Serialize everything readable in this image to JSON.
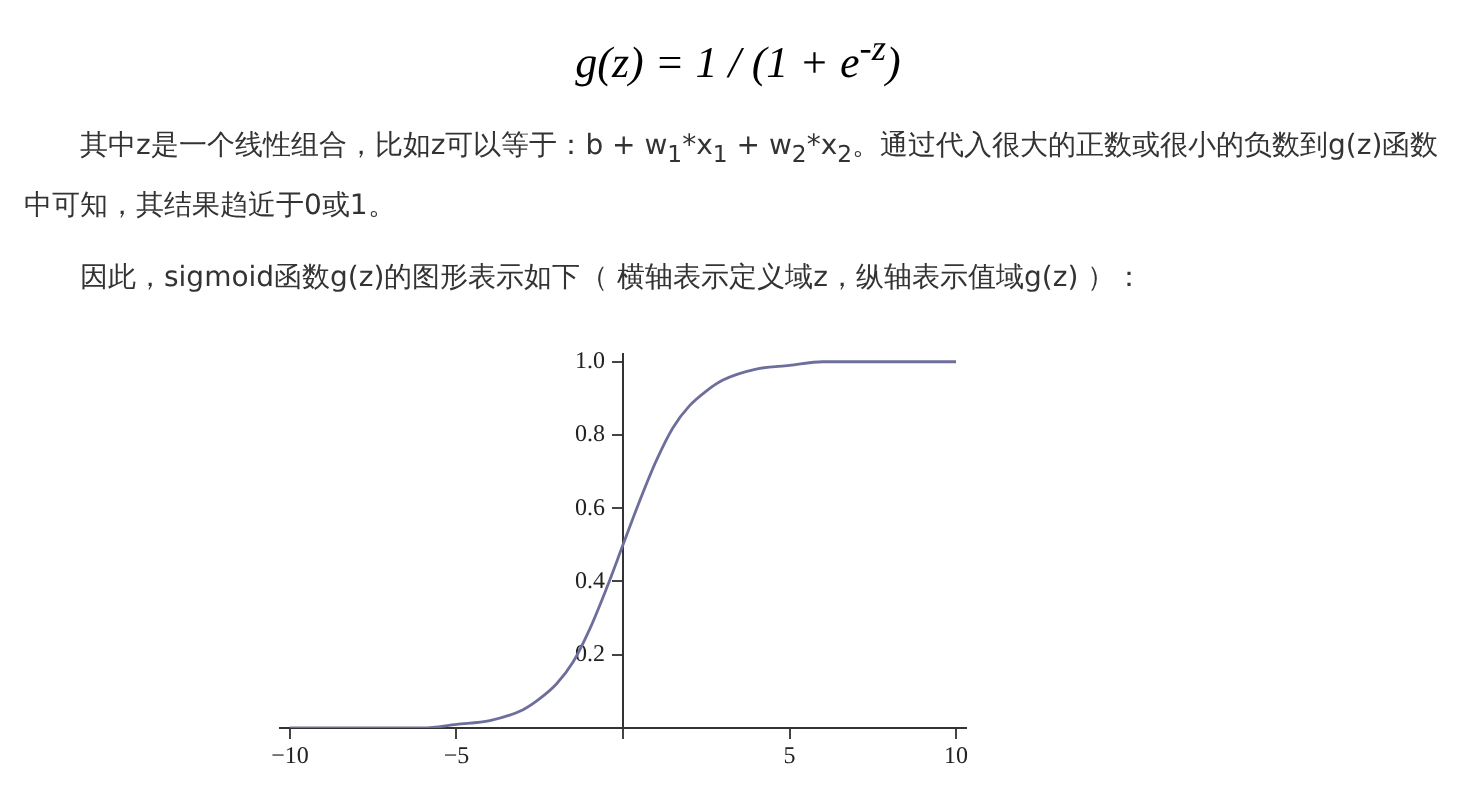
{
  "chart_data": {
    "type": "line",
    "title": "g(z) = 1 / (1 + e$^{-z}$)",
    "annotations": [
      "其中z是一个线性组合，比如z可以等于：b + w$_{1}$*x$_{1}$ + w$_{2}$*x$_{2}$。通过代入很大的正数或很小的负数到g(z)函数中可知，其结果趋近于0或1。",
      "因此，sigmoid函数g(z)的图形表示如下（ 横轴表示定义域z，纵轴表示值域g(z) ）："
    ],
    "x": [
      -10,
      -8,
      -6,
      -5,
      -4,
      -3,
      -2.5,
      -2,
      -1.5,
      -1,
      -0.5,
      0,
      0.5,
      1,
      1.5,
      2,
      2.5,
      3,
      4,
      5,
      6,
      8,
      10
    ],
    "series": [
      {
        "color": "#6e6e9c",
        "values": [
          0.0,
          0.0,
          0.0,
          0.01,
          0.02,
          0.05,
          0.08,
          0.12,
          0.18,
          0.27,
          0.38,
          0.5,
          0.62,
          0.73,
          0.82,
          0.88,
          0.92,
          0.95,
          0.98,
          0.99,
          1.0,
          1.0,
          1.0
        ]
      }
    ],
    "xlim": [
      -10.3,
      10.3
    ],
    "ylim": [
      0,
      1.02
    ],
    "xticks": [
      -10,
      -5,
      {
        "value": 0,
        "label": null
      },
      5,
      10
    ],
    "yticks": [
      {
        "value": 0,
        "label": null
      },
      0.2,
      0.4,
      0.6,
      0.8,
      {
        "value": 1,
        "label": "1.0"
      }
    ],
    "grid": false,
    "legend": false,
    "marker": "none",
    "line_style": "solid"
  }
}
